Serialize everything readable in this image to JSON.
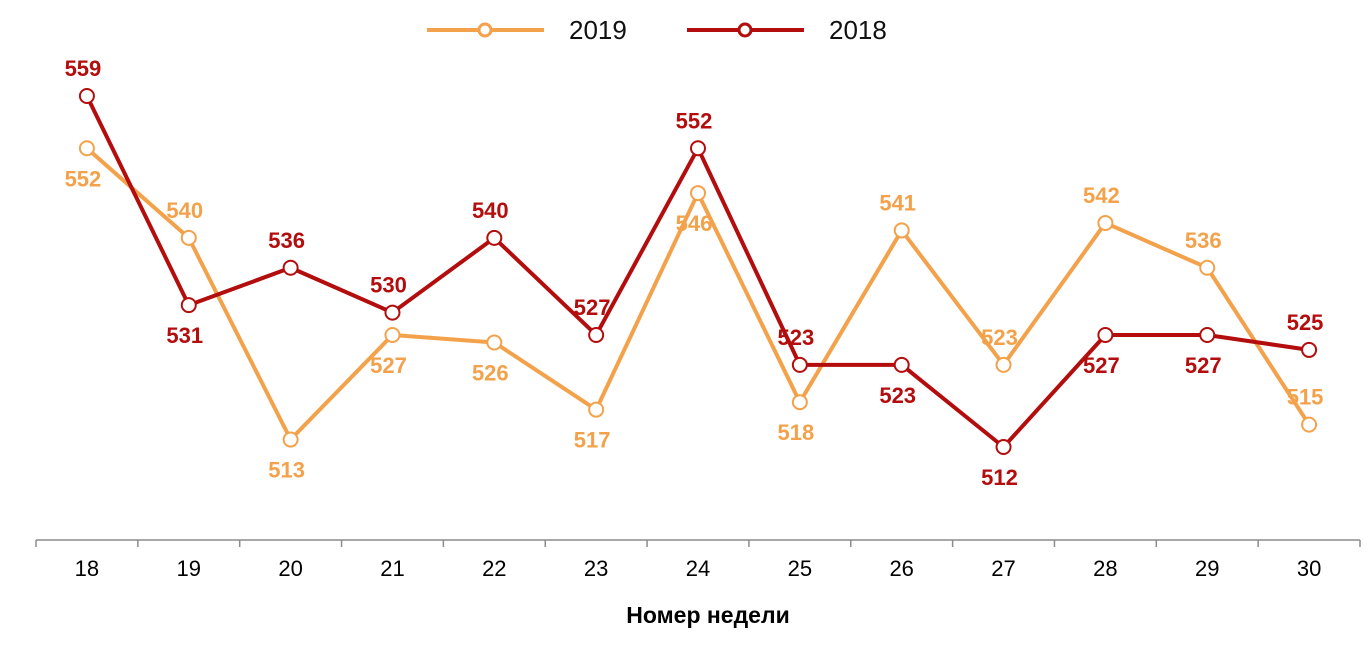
{
  "chart_data": {
    "type": "line",
    "title": "",
    "xlabel": "Номер недели",
    "ylabel": "",
    "categories": [
      "18",
      "19",
      "20",
      "21",
      "22",
      "23",
      "24",
      "25",
      "26",
      "27",
      "28",
      "29",
      "30"
    ],
    "ylim": [
      490,
      565
    ],
    "grid": false,
    "legend_position": "top-center",
    "series": [
      {
        "name": "2019",
        "color": "#f3a24b",
        "values": [
          552,
          540,
          513,
          527,
          526,
          517,
          546,
          518,
          541,
          523,
          542,
          536,
          515
        ],
        "label_positions": [
          "below",
          "above",
          "below",
          "below",
          "below",
          "below",
          "below",
          "below",
          "above",
          "above",
          "above",
          "above",
          "above"
        ]
      },
      {
        "name": "2018",
        "color": "#b30d0d",
        "values": [
          559,
          531,
          536,
          530,
          540,
          527,
          552,
          523,
          523,
          512,
          527,
          527,
          525
        ],
        "label_positions": [
          "above",
          "below",
          "above",
          "above",
          "above",
          "above",
          "above",
          "above",
          "below",
          "below",
          "below",
          "below",
          "above"
        ]
      }
    ],
    "legend": {
      "items": [
        {
          "label": "2019",
          "color": "#f3a24b"
        },
        {
          "label": "2018",
          "color": "#b30d0d"
        }
      ]
    },
    "axis_color": "#8c8c8c"
  }
}
